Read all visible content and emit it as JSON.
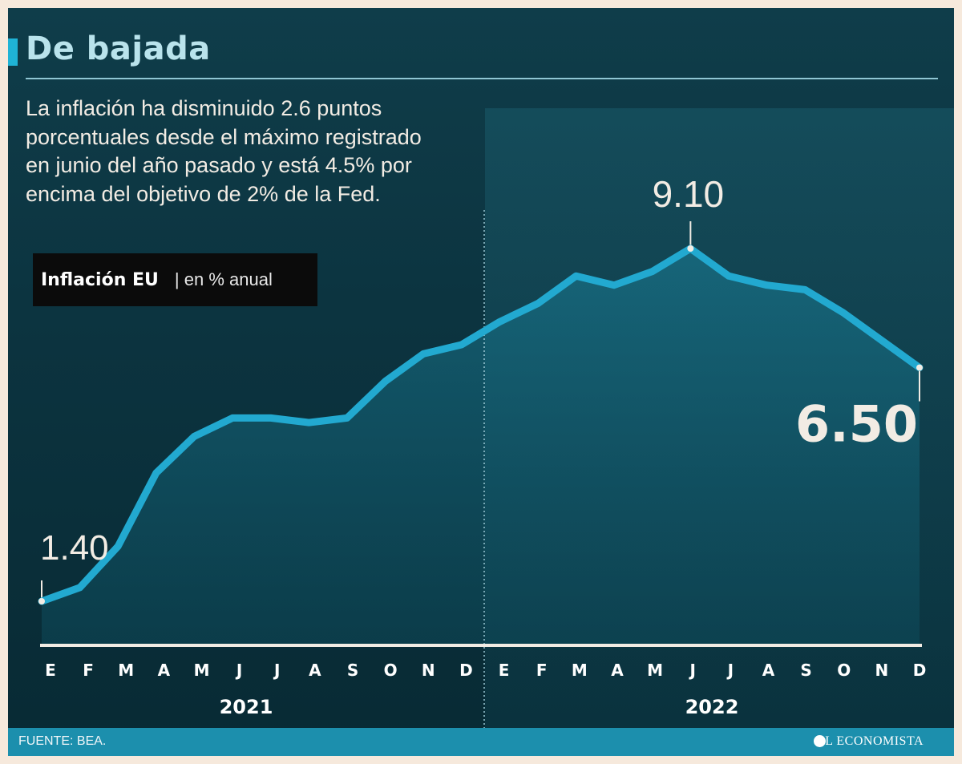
{
  "header": {
    "title": "De bajada",
    "subtitle": "La inflación ha disminuido 2.6 puntos porcentuales desde el máximo registrado en junio del año pasado y está 4.5% por encima del objetivo de 2% de la Fed."
  },
  "legend": {
    "title": "Inflación EU",
    "unit": "| en % anual"
  },
  "chart_data": {
    "type": "line",
    "title": "Inflación EU",
    "ylabel": "en % anual",
    "xlabel": "",
    "categories": [
      "E",
      "F",
      "M",
      "A",
      "M",
      "J",
      "J",
      "A",
      "S",
      "O",
      "N",
      "D",
      "E",
      "F",
      "M",
      "A",
      "M",
      "J",
      "J",
      "A",
      "S",
      "O",
      "N",
      "D"
    ],
    "years": [
      "2021",
      "2022"
    ],
    "series": [
      {
        "name": "Inflación EU",
        "values": [
          1.4,
          1.7,
          2.6,
          4.2,
          5.0,
          5.4,
          5.4,
          5.3,
          5.4,
          6.2,
          6.8,
          7.0,
          7.5,
          7.9,
          8.5,
          8.3,
          8.6,
          9.1,
          8.5,
          8.3,
          8.2,
          7.7,
          7.1,
          6.5
        ],
        "color": "#22a9d0"
      }
    ],
    "annotations": [
      {
        "index": 0,
        "label": "1.40"
      },
      {
        "index": 17,
        "label": "9.10"
      },
      {
        "index": 23,
        "label": "6.50"
      }
    ],
    "ylim": [
      0,
      10
    ],
    "grid": false,
    "legend": "top-left"
  },
  "footer": {
    "source": "FUENTE: BEA.",
    "brand": "EL ECONOMISTA"
  },
  "colors": {
    "line": "#22a9d0",
    "accent": "#1fb3d6",
    "footer": "#1c8fad",
    "title": "#b9e3ec"
  }
}
